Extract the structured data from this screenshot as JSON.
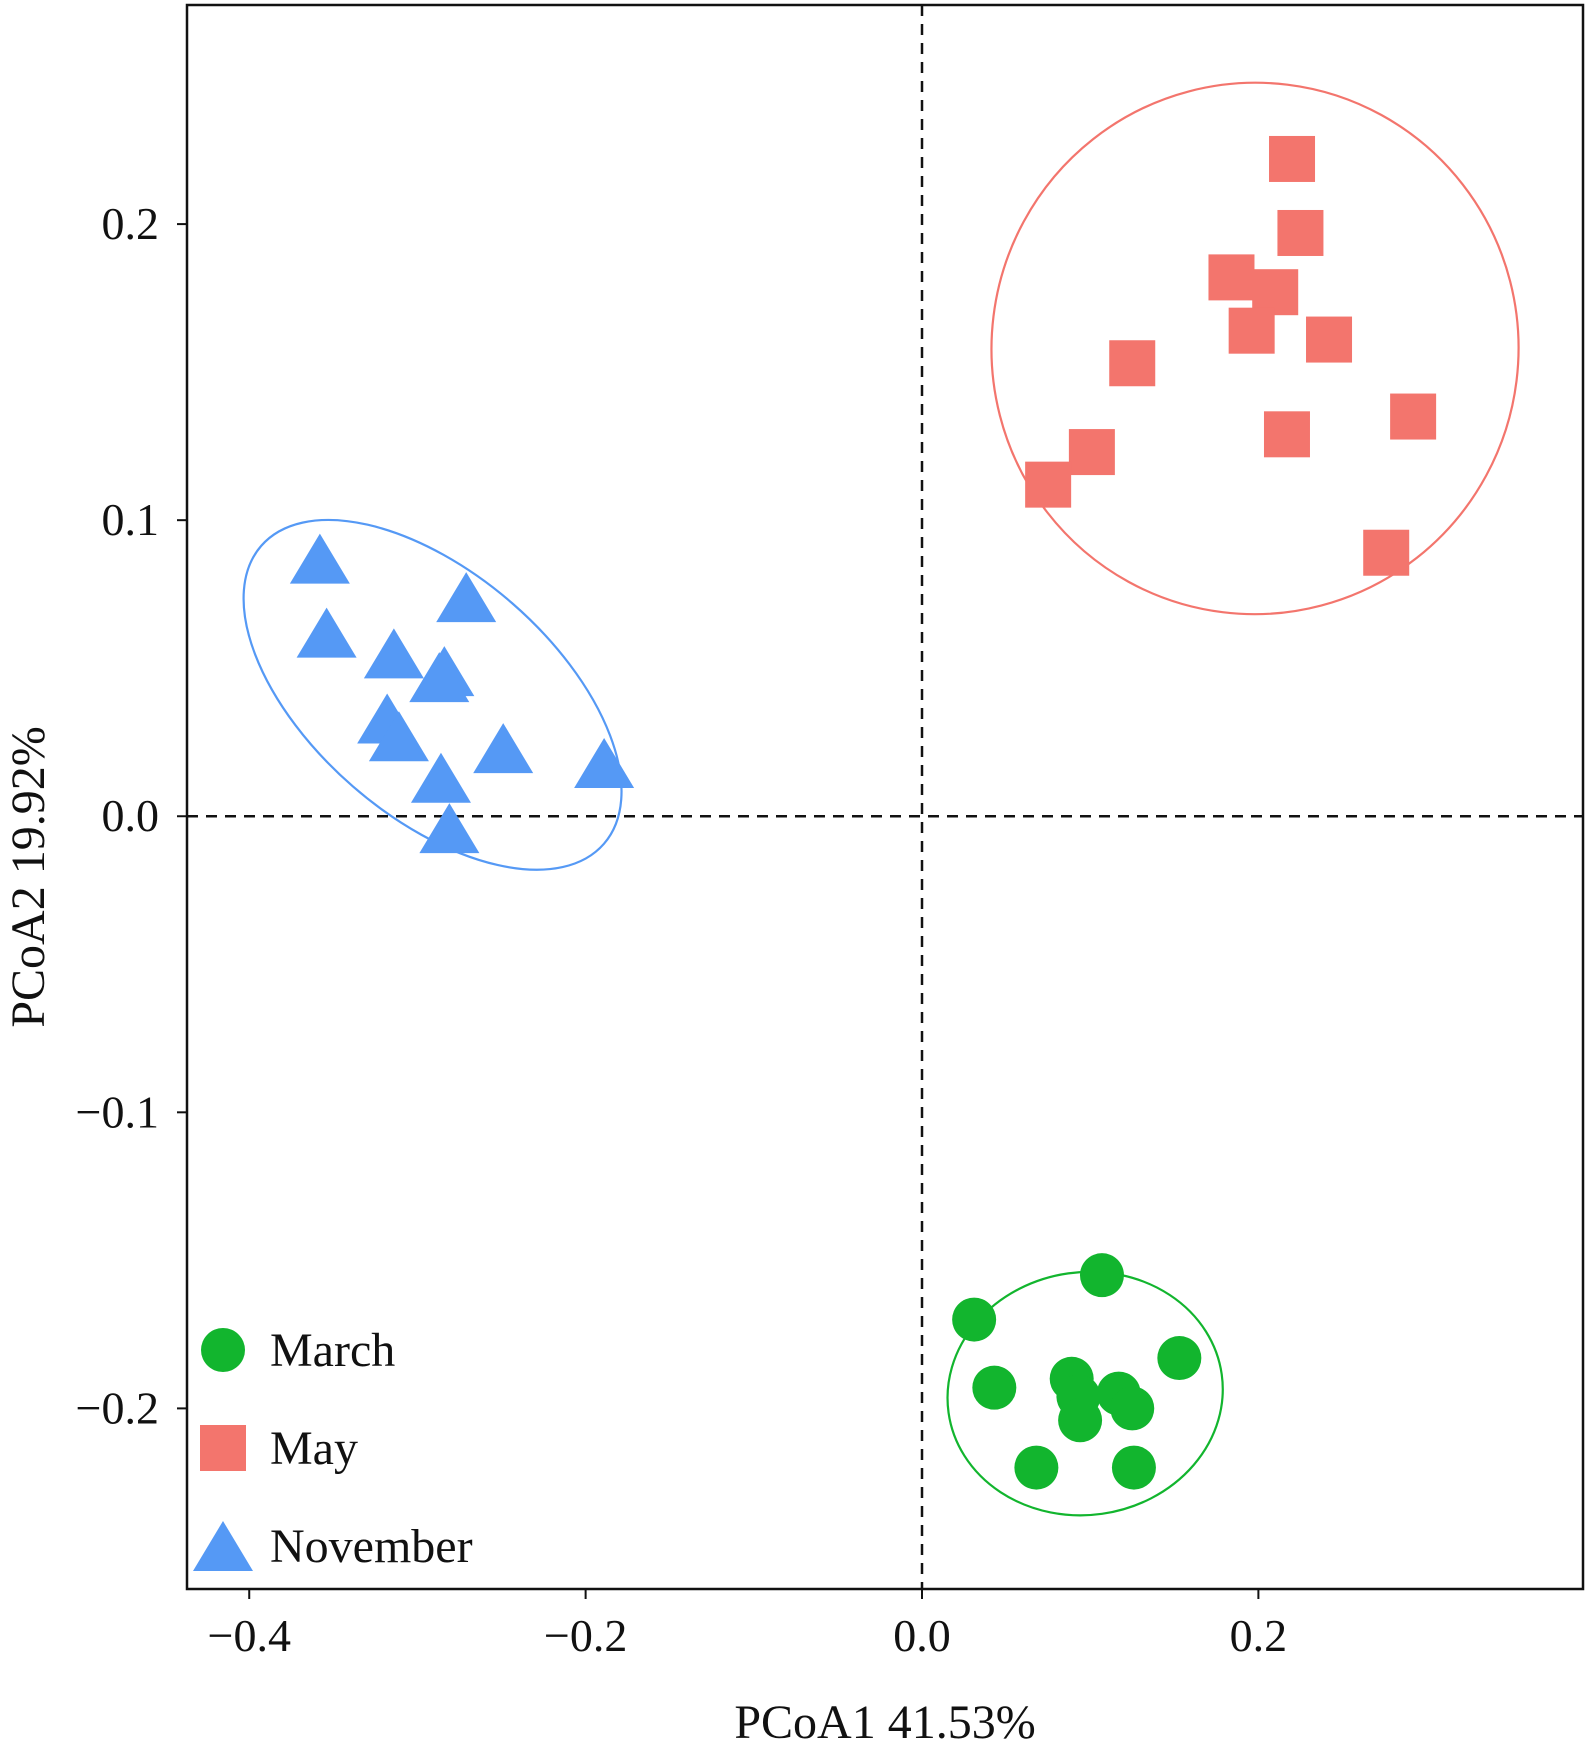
{
  "chart_data": {
    "type": "scatter",
    "title": "",
    "xlabel": "PCoA1 41.53%",
    "ylabel": "PCoA2 19.92%",
    "xlim": [
      -0.437,
      0.393
    ],
    "ylim": [
      -0.261,
      0.274
    ],
    "x_ticks": [
      -0.4,
      -0.2,
      0.0,
      0.2
    ],
    "x_tick_labels": [
      "−0.4",
      "−0.2",
      "0.0",
      "0.2"
    ],
    "y_ticks": [
      -0.2,
      -0.1,
      0.0,
      0.1,
      0.2
    ],
    "y_tick_labels": [
      "−0.2",
      "−0.1",
      "0.0",
      "0.1",
      "0.2"
    ],
    "reference_lines": {
      "x": 0.0,
      "y": 0.0,
      "style": "dashed"
    },
    "legend_position": "bottom-left",
    "series": [
      {
        "name": "March",
        "marker": "circle",
        "color": "#12b52e",
        "points": [
          [
            0.107,
            -0.155
          ],
          [
            0.031,
            -0.17
          ],
          [
            0.153,
            -0.183
          ],
          [
            0.043,
            -0.193
          ],
          [
            0.089,
            -0.19
          ],
          [
            0.093,
            -0.196
          ],
          [
            0.117,
            -0.195
          ],
          [
            0.125,
            -0.2
          ],
          [
            0.094,
            -0.204
          ],
          [
            0.068,
            -0.22
          ],
          [
            0.126,
            -0.22
          ]
        ],
        "ellipse": {
          "cx": 0.097,
          "cy": -0.195,
          "rx": 0.082,
          "ry": 0.041,
          "angle": -8
        }
      },
      {
        "name": "May",
        "marker": "square",
        "color": "#f3756d",
        "points": [
          [
            0.22,
            0.222
          ],
          [
            0.225,
            0.197
          ],
          [
            0.184,
            0.182
          ],
          [
            0.21,
            0.177
          ],
          [
            0.196,
            0.164
          ],
          [
            0.242,
            0.161
          ],
          [
            0.125,
            0.153
          ],
          [
            0.292,
            0.135
          ],
          [
            0.217,
            0.129
          ],
          [
            0.101,
            0.123
          ],
          [
            0.075,
            0.112
          ],
          [
            0.276,
            0.089
          ]
        ],
        "ellipse": {
          "cx": 0.198,
          "cy": 0.158,
          "rx": 0.158,
          "ry": 0.089,
          "angle": -83
        }
      },
      {
        "name": "November",
        "marker": "triangle",
        "color": "#5599f5",
        "points": [
          [
            -0.358,
            0.087
          ],
          [
            -0.354,
            0.062
          ],
          [
            -0.271,
            0.074
          ],
          [
            -0.314,
            0.055
          ],
          [
            -0.284,
            0.049
          ],
          [
            -0.287,
            0.047
          ],
          [
            -0.318,
            0.033
          ],
          [
            -0.311,
            0.027
          ],
          [
            -0.249,
            0.023
          ],
          [
            -0.189,
            0.018
          ],
          [
            -0.286,
            0.013
          ],
          [
            -0.281,
            -0.004
          ]
        ],
        "ellipse": {
          "cx": -0.291,
          "cy": 0.041,
          "rx": 0.135,
          "ry": 0.041,
          "angle": 41
        }
      }
    ]
  }
}
